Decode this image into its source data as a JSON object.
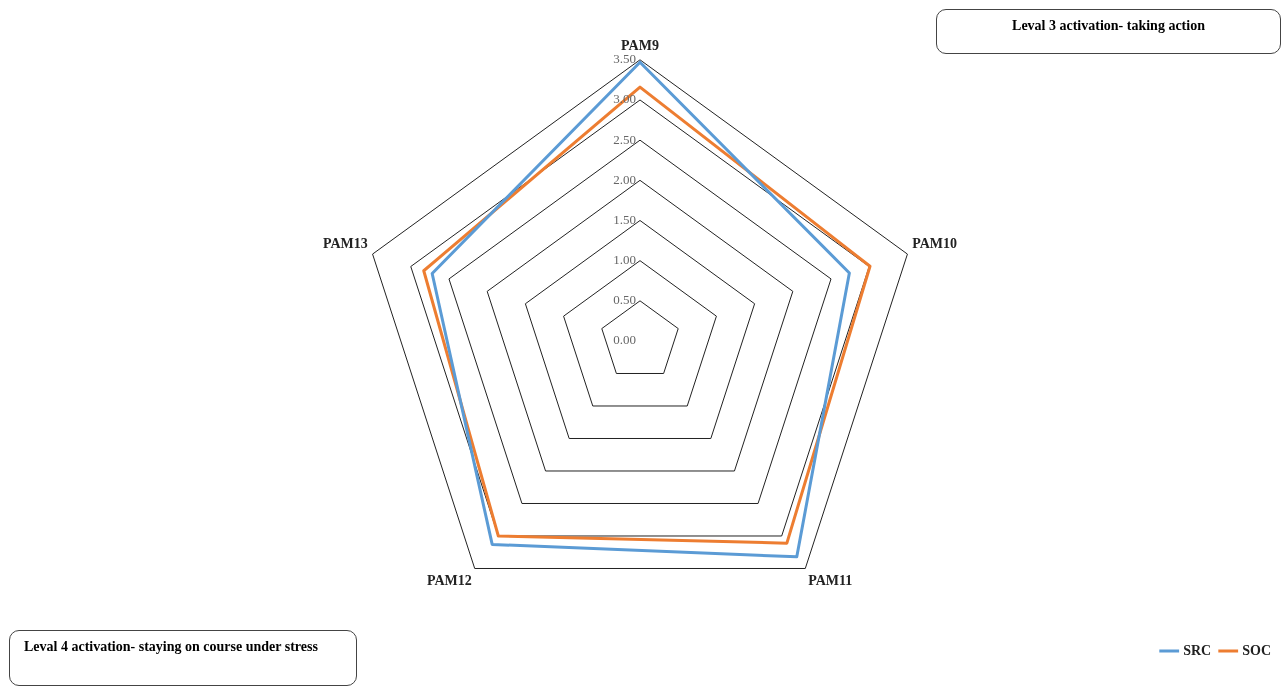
{
  "chart_data": {
    "type": "radar",
    "categories": [
      "PAM9",
      "PAM10",
      "PAM11",
      "PAM12",
      "PAM13"
    ],
    "series": [
      {
        "name": "SRC",
        "color": "#5b9bd5",
        "values": [
          3.47,
          2.74,
          3.32,
          3.13,
          2.72
        ]
      },
      {
        "name": "SOC",
        "color": "#ed7d31",
        "values": [
          3.16,
          3.01,
          3.11,
          3.0,
          2.83
        ]
      }
    ],
    "ylim": [
      0,
      3.5
    ],
    "yticks": [
      {
        "value": 0,
        "label": "0.00"
      },
      {
        "value": 0.5,
        "label": "0.50"
      },
      {
        "value": 1,
        "label": "1.00"
      },
      {
        "value": 1.5,
        "label": "1.50"
      },
      {
        "value": 2,
        "label": "2.00"
      },
      {
        "value": 2.5,
        "label": "2.50"
      },
      {
        "value": 3,
        "label": "3.00"
      },
      {
        "value": 3.5,
        "label": "3.50"
      }
    ],
    "grid": true,
    "legend": "bottom right",
    "annotations": [
      "Leval 3 activation- taking action",
      "Leval 4 activation- staying on course under stress"
    ]
  }
}
